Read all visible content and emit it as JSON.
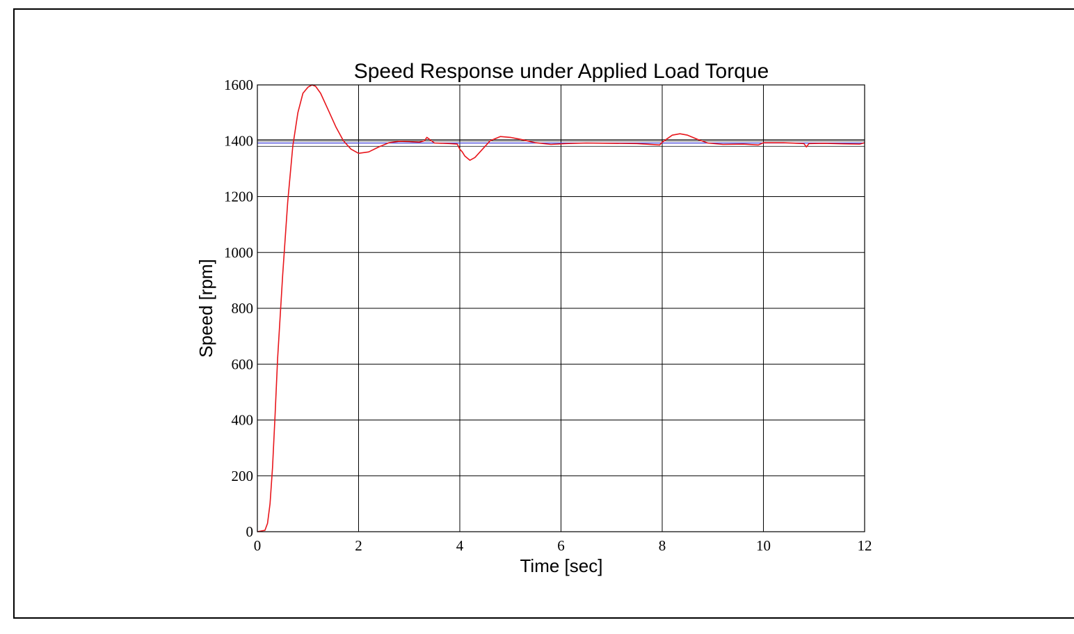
{
  "chart_data": {
    "type": "line",
    "title": "Speed Response under Applied Load Torque",
    "xlabel": "Time [sec]",
    "ylabel": "Speed [rpm]",
    "xlim": [
      0,
      12
    ],
    "ylim": [
      0,
      1600
    ],
    "xticks": [
      0,
      2,
      4,
      6,
      8,
      10,
      12
    ],
    "yticks": [
      0,
      200,
      400,
      600,
      800,
      1000,
      1200,
      1400,
      1600
    ],
    "grid": true,
    "series": [
      {
        "name": "",
        "color": "#e8151b",
        "x": [
          0,
          0.15,
          0.2,
          0.25,
          0.3,
          0.35,
          0.4,
          0.5,
          0.6,
          0.7,
          0.8,
          0.9,
          1.0,
          1.08,
          1.15,
          1.25,
          1.4,
          1.55,
          1.7,
          1.85,
          2.0,
          2.2,
          2.4,
          2.6,
          2.8,
          3.0,
          3.2,
          3.3,
          3.35,
          3.5,
          3.8,
          3.95,
          4.0,
          4.05,
          4.1,
          4.2,
          4.3,
          4.45,
          4.6,
          4.8,
          5.0,
          5.2,
          5.5,
          5.8,
          6.1,
          6.5,
          7.0,
          7.5,
          7.95,
          8.0,
          8.2,
          8.35,
          8.5,
          8.7,
          8.9,
          9.2,
          9.6,
          9.9,
          10.0,
          10.4,
          10.8,
          10.85,
          10.9,
          11.2,
          11.6,
          11.9,
          12.0
        ],
        "y": [
          0,
          5,
          30,
          100,
          230,
          420,
          620,
          920,
          1180,
          1380,
          1500,
          1570,
          1592,
          1600,
          1595,
          1570,
          1510,
          1450,
          1400,
          1370,
          1355,
          1360,
          1378,
          1393,
          1398,
          1397,
          1395,
          1400,
          1412,
          1392,
          1390,
          1388,
          1370,
          1360,
          1345,
          1330,
          1340,
          1370,
          1400,
          1415,
          1412,
          1405,
          1393,
          1387,
          1390,
          1392,
          1391,
          1390,
          1385,
          1395,
          1420,
          1425,
          1420,
          1405,
          1392,
          1387,
          1388,
          1385,
          1393,
          1393,
          1390,
          1378,
          1390,
          1391,
          1389,
          1388,
          1393
        ]
      },
      {
        "name": "",
        "color": "#3a3ad6",
        "x": [
          0,
          12
        ],
        "y": [
          1392,
          1392
        ]
      }
    ]
  }
}
